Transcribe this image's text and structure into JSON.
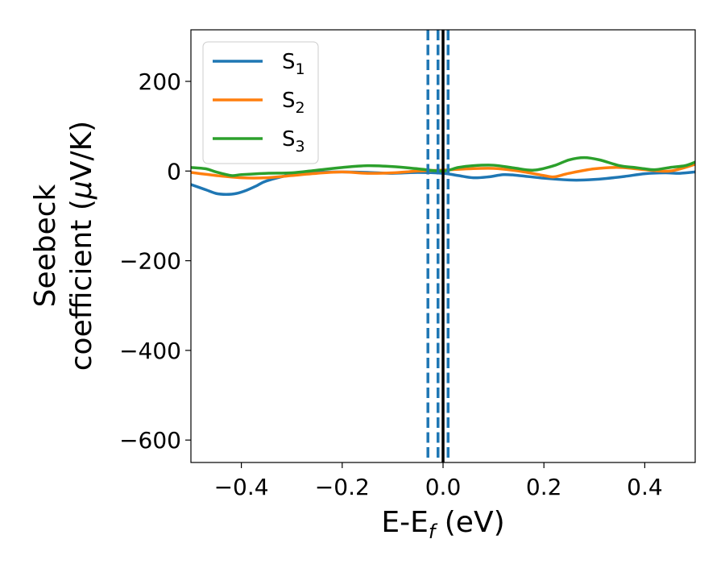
{
  "chart_data": {
    "type": "line",
    "xlabel": "E-E",
    "xlabel_sub": "f",
    "xlabel_unit": " (eV)",
    "ylabel_line1": "Seebeck",
    "ylabel_line2": "coefficient  (",
    "ylabel_mu": "μ",
    "ylabel_unit": "V/K)",
    "xlim": [
      -0.5,
      0.5
    ],
    "ylim": [
      -650,
      315
    ],
    "xticks": [
      -0.4,
      -0.2,
      0.0,
      0.2,
      0.4
    ],
    "xtick_labels": [
      "−0.4",
      "−0.2",
      "0.0",
      "0.2",
      "0.4"
    ],
    "yticks": [
      200,
      0,
      -200,
      -400,
      -600
    ],
    "ytick_labels": [
      "200",
      "0",
      "−200",
      "−400",
      "−600"
    ],
    "legend": "top-left",
    "grid": false,
    "series": [
      {
        "name": "S",
        "sub": "1",
        "color": "#1f77b4",
        "x": [
          -0.5,
          -0.47,
          -0.45,
          -0.43,
          -0.41,
          -0.39,
          -0.37,
          -0.35,
          -0.3,
          -0.25,
          -0.2,
          -0.15,
          -0.1,
          -0.05,
          0.0,
          0.03,
          0.06,
          0.09,
          0.12,
          0.15,
          0.2,
          0.25,
          0.28,
          0.32,
          0.36,
          0.4,
          0.44,
          0.47,
          0.5
        ],
        "y": [
          -30,
          -42,
          -50,
          -52,
          -50,
          -43,
          -33,
          -22,
          -8,
          -3,
          -2,
          -3,
          -5,
          -3,
          -5,
          -10,
          -15,
          -13,
          -8,
          -10,
          -16,
          -20,
          -20,
          -17,
          -12,
          -6,
          -4,
          -5,
          -2
        ]
      },
      {
        "name": "S",
        "sub": "2",
        "color": "#ff7f0e",
        "x": [
          -0.5,
          -0.45,
          -0.4,
          -0.35,
          -0.3,
          -0.25,
          -0.2,
          -0.15,
          -0.1,
          -0.05,
          0.0,
          0.05,
          0.1,
          0.15,
          0.2,
          0.22,
          0.25,
          0.3,
          0.35,
          0.4,
          0.45,
          0.5
        ],
        "y": [
          -3,
          -10,
          -15,
          -15,
          -10,
          -5,
          -2,
          -5,
          -4,
          0,
          2,
          5,
          6,
          0,
          -10,
          -13,
          -5,
          5,
          8,
          3,
          0,
          15
        ]
      },
      {
        "name": "S",
        "sub": "3",
        "color": "#2ca02c",
        "x": [
          -0.5,
          -0.47,
          -0.45,
          -0.42,
          -0.4,
          -0.35,
          -0.3,
          -0.25,
          -0.2,
          -0.15,
          -0.1,
          -0.05,
          0.0,
          0.03,
          0.06,
          0.1,
          0.14,
          0.18,
          0.22,
          0.25,
          0.28,
          0.31,
          0.35,
          0.38,
          0.4,
          0.42,
          0.45,
          0.48,
          0.5
        ],
        "y": [
          8,
          5,
          -2,
          -10,
          -8,
          -5,
          -4,
          2,
          8,
          12,
          10,
          5,
          0,
          8,
          12,
          13,
          7,
          2,
          12,
          25,
          30,
          25,
          12,
          8,
          5,
          3,
          8,
          12,
          20
        ]
      }
    ],
    "vlines": [
      {
        "x": -0.03,
        "style": "dashed",
        "color": "#1f77b4"
      },
      {
        "x": -0.01,
        "style": "dashed",
        "color": "#1f77b4"
      },
      {
        "x": 0.01,
        "style": "dashed",
        "color": "#1f77b4"
      },
      {
        "x": 0.0,
        "style": "solid",
        "color": "#000000"
      }
    ]
  }
}
